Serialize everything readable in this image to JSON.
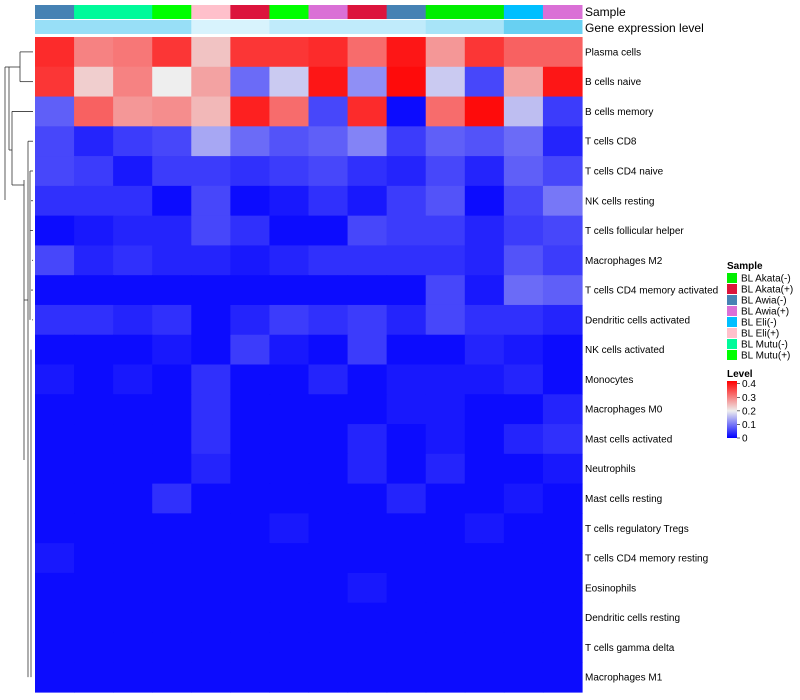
{
  "chart_data": {
    "type": "heatmap",
    "annotation_row_labels": [
      "Sample",
      "Gene expression level"
    ],
    "columns": [
      {
        "sample": "BL Awia(-)",
        "expr": 0.55
      },
      {
        "sample": "BL Mutu(-)",
        "expr": 0.55
      },
      {
        "sample": "BL Mutu(-)",
        "expr": 0.55
      },
      {
        "sample": "BL Mutu(+)",
        "expr": 0.55
      },
      {
        "sample": "BL Eli(+)",
        "expr": 0.15
      },
      {
        "sample": "BL Akata(+)",
        "expr": 0.15
      },
      {
        "sample": "BL Mutu(+)",
        "expr": 0.3
      },
      {
        "sample": "BL Awia(+)",
        "expr": 0.3
      },
      {
        "sample": "BL Akata(+)",
        "expr": 0.3
      },
      {
        "sample": "BL Awia(-)",
        "expr": 0.3
      },
      {
        "sample": "BL Akata(-)",
        "expr": 0.45
      },
      {
        "sample": "BL Akata(-)",
        "expr": 0.45
      },
      {
        "sample": "BL Eli(-)",
        "expr": 0.85
      },
      {
        "sample": "BL Awia(+)",
        "expr": 0.85
      }
    ],
    "rows": [
      "Plasma cells",
      "B cells naive",
      "B cells memory",
      "T cells CD8",
      "T cells CD4 naive",
      "NK cells resting",
      "T cells follicular helper",
      "Macrophages M2",
      "T cells CD4 memory activated",
      "Dendritic cells activated",
      "NK cells activated",
      "Monocytes",
      "Macrophages M0",
      "Mast cells activated",
      "Neutrophils",
      "Mast cells resting",
      "T cells regulatory  Tregs",
      "T cells CD4 memory resting",
      "Eosinophils",
      "Dendritic cells resting",
      "T cells gamma delta",
      "Macrophages M1"
    ],
    "values": [
      [
        0.38,
        0.3,
        0.31,
        0.37,
        0.24,
        0.37,
        0.37,
        0.38,
        0.32,
        0.4,
        0.28,
        0.37,
        0.33,
        0.33
      ],
      [
        0.37,
        0.23,
        0.3,
        0.2,
        0.27,
        0.09,
        0.17,
        0.4,
        0.12,
        0.41,
        0.17,
        0.06,
        0.27,
        0.4
      ],
      [
        0.08,
        0.33,
        0.28,
        0.29,
        0.25,
        0.39,
        0.32,
        0.06,
        0.38,
        0.01,
        0.32,
        0.41,
        0.16,
        0.05
      ],
      [
        0.06,
        0.03,
        0.05,
        0.06,
        0.14,
        0.09,
        0.07,
        0.08,
        0.11,
        0.05,
        0.08,
        0.07,
        0.09,
        0.03
      ],
      [
        0.06,
        0.05,
        0.02,
        0.05,
        0.05,
        0.04,
        0.05,
        0.06,
        0.04,
        0.03,
        0.06,
        0.03,
        0.08,
        0.06
      ],
      [
        0.04,
        0.04,
        0.04,
        0.01,
        0.06,
        0.01,
        0.02,
        0.04,
        0.02,
        0.05,
        0.07,
        0.01,
        0.06,
        0.1
      ],
      [
        0.01,
        0.02,
        0.03,
        0.03,
        0.06,
        0.04,
        0.01,
        0.01,
        0.06,
        0.05,
        0.05,
        0.03,
        0.05,
        0.06
      ],
      [
        0.06,
        0.03,
        0.04,
        0.03,
        0.03,
        0.02,
        0.03,
        0.04,
        0.04,
        0.04,
        0.04,
        0.03,
        0.07,
        0.05
      ],
      [
        0.01,
        0.01,
        0.01,
        0.01,
        0.01,
        0.01,
        0.01,
        0.01,
        0.01,
        0.01,
        0.06,
        0.02,
        0.09,
        0.08
      ],
      [
        0.04,
        0.04,
        0.03,
        0.04,
        0.01,
        0.03,
        0.05,
        0.04,
        0.05,
        0.03,
        0.06,
        0.04,
        0.04,
        0.03
      ],
      [
        0.01,
        0.01,
        0.01,
        0.02,
        0.01,
        0.05,
        0.02,
        0.01,
        0.05,
        0.01,
        0.01,
        0.03,
        0.02,
        0.01
      ],
      [
        0.02,
        0.01,
        0.02,
        0.01,
        0.04,
        0.01,
        0.01,
        0.03,
        0.01,
        0.02,
        0.02,
        0.02,
        0.03,
        0.01
      ],
      [
        0.01,
        0.01,
        0.01,
        0.01,
        0.04,
        0.01,
        0.01,
        0.01,
        0.01,
        0.02,
        0.02,
        0.01,
        0.01,
        0.03
      ],
      [
        0.01,
        0.01,
        0.01,
        0.01,
        0.04,
        0.01,
        0.01,
        0.01,
        0.03,
        0.01,
        0.02,
        0.01,
        0.03,
        0.04
      ],
      [
        0.01,
        0.01,
        0.01,
        0.01,
        0.03,
        0.01,
        0.01,
        0.01,
        0.03,
        0.01,
        0.03,
        0.01,
        0.01,
        0.02
      ],
      [
        0.01,
        0.01,
        0.01,
        0.04,
        0.01,
        0.01,
        0.01,
        0.01,
        0.01,
        0.03,
        0.01,
        0.01,
        0.02,
        0.01
      ],
      [
        0.01,
        0.01,
        0.01,
        0.01,
        0.01,
        0.01,
        0.02,
        0.01,
        0.01,
        0.01,
        0.01,
        0.02,
        0.01,
        0.01
      ],
      [
        0.02,
        0.01,
        0.01,
        0.01,
        0.01,
        0.01,
        0.01,
        0.01,
        0.01,
        0.01,
        0.01,
        0.01,
        0.01,
        0.01
      ],
      [
        0.01,
        0.01,
        0.01,
        0.01,
        0.01,
        0.01,
        0.01,
        0.01,
        0.02,
        0.01,
        0.01,
        0.01,
        0.01,
        0.01
      ],
      [
        0.01,
        0.01,
        0.01,
        0.01,
        0.01,
        0.01,
        0.01,
        0.01,
        0.01,
        0.01,
        0.01,
        0.01,
        0.01,
        0.01
      ],
      [
        0.01,
        0.01,
        0.01,
        0.01,
        0.01,
        0.01,
        0.01,
        0.01,
        0.01,
        0.01,
        0.01,
        0.01,
        0.01,
        0.01
      ],
      [
        0.01,
        0.01,
        0.01,
        0.01,
        0.01,
        0.01,
        0.01,
        0.01,
        0.01,
        0.01,
        0.01,
        0.01,
        0.01,
        0.01
      ]
    ],
    "legend_sample": {
      "title": "Sample",
      "entries": [
        {
          "label": "BL Akata(-)",
          "color": "#00ee00"
        },
        {
          "label": "BL Akata(+)",
          "color": "#dc143c"
        },
        {
          "label": "BL Awia(-)",
          "color": "#4682b4"
        },
        {
          "label": "BL Awia(+)",
          "color": "#da70d6"
        },
        {
          "label": "BL Eli(-)",
          "color": "#00bfff"
        },
        {
          "label": "BL Eli(+)",
          "color": "#ffc0cb"
        },
        {
          "label": "BL Mutu(-)",
          "color": "#00fa9a"
        },
        {
          "label": "BL Mutu(+)",
          "color": "#00ff00"
        }
      ]
    },
    "legend_level": {
      "title": "Level",
      "ticks": [
        "0.4",
        "0.3",
        "0.2",
        "0.1",
        "0"
      ],
      "tick_values": [
        0.4,
        0.3,
        0.2,
        0.1,
        0
      ],
      "range": [
        0,
        0.42
      ]
    },
    "color_scale": {
      "low": "#0000ff",
      "mid": "#eeeeee",
      "high": "#ff0000",
      "mid_value": 0.2,
      "max_value": 0.42
    }
  }
}
